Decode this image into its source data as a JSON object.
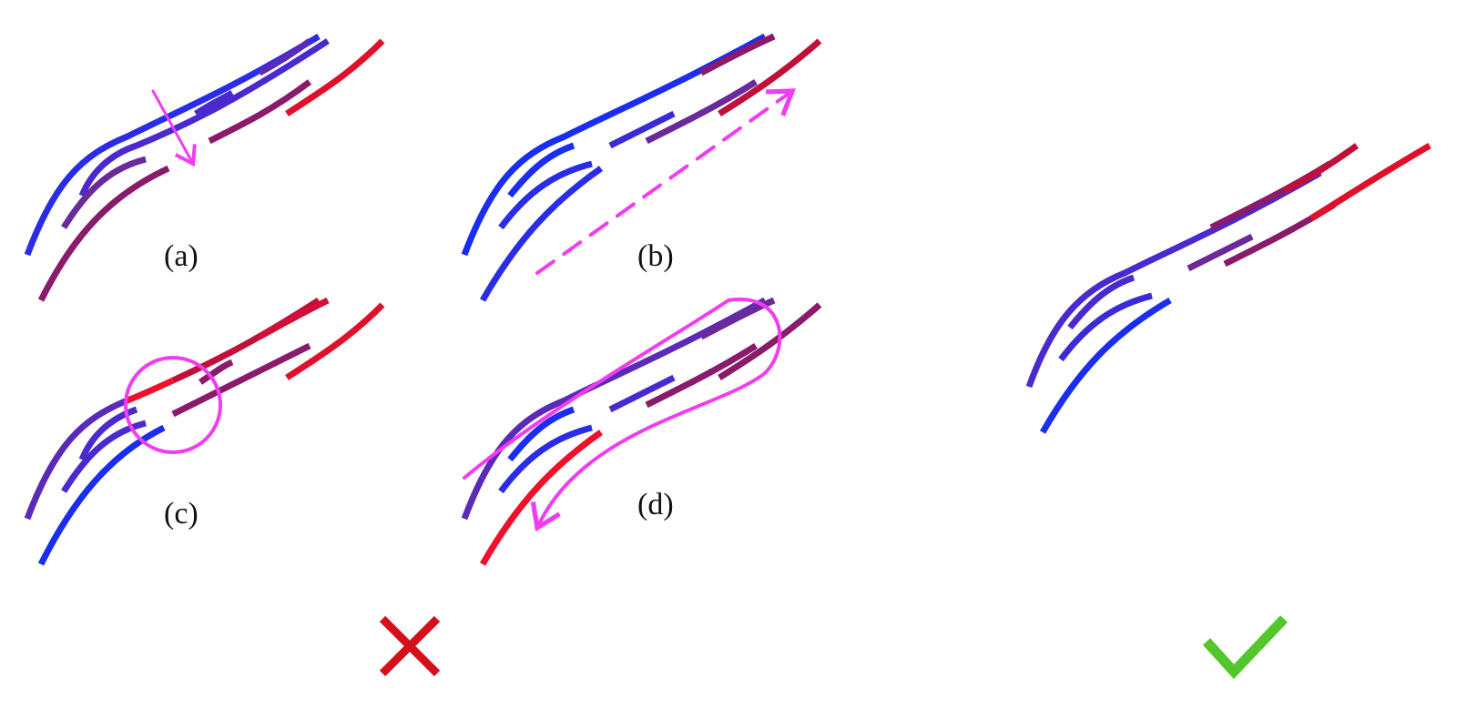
{
  "panels": [
    {
      "id": "a",
      "label": "(a)"
    },
    {
      "id": "b",
      "label": "(b)"
    },
    {
      "id": "c",
      "label": "(c)"
    },
    {
      "id": "d",
      "label": "(d)"
    }
  ],
  "verdicts": {
    "wrong": {
      "icon": "cross-icon",
      "color": "#d4101a"
    },
    "right": {
      "icon": "checkmark-icon",
      "color": "#53c62c"
    }
  },
  "colors": {
    "blue": "#1a2df0",
    "red": "#f0102a",
    "annotation": "#f23cf0"
  }
}
